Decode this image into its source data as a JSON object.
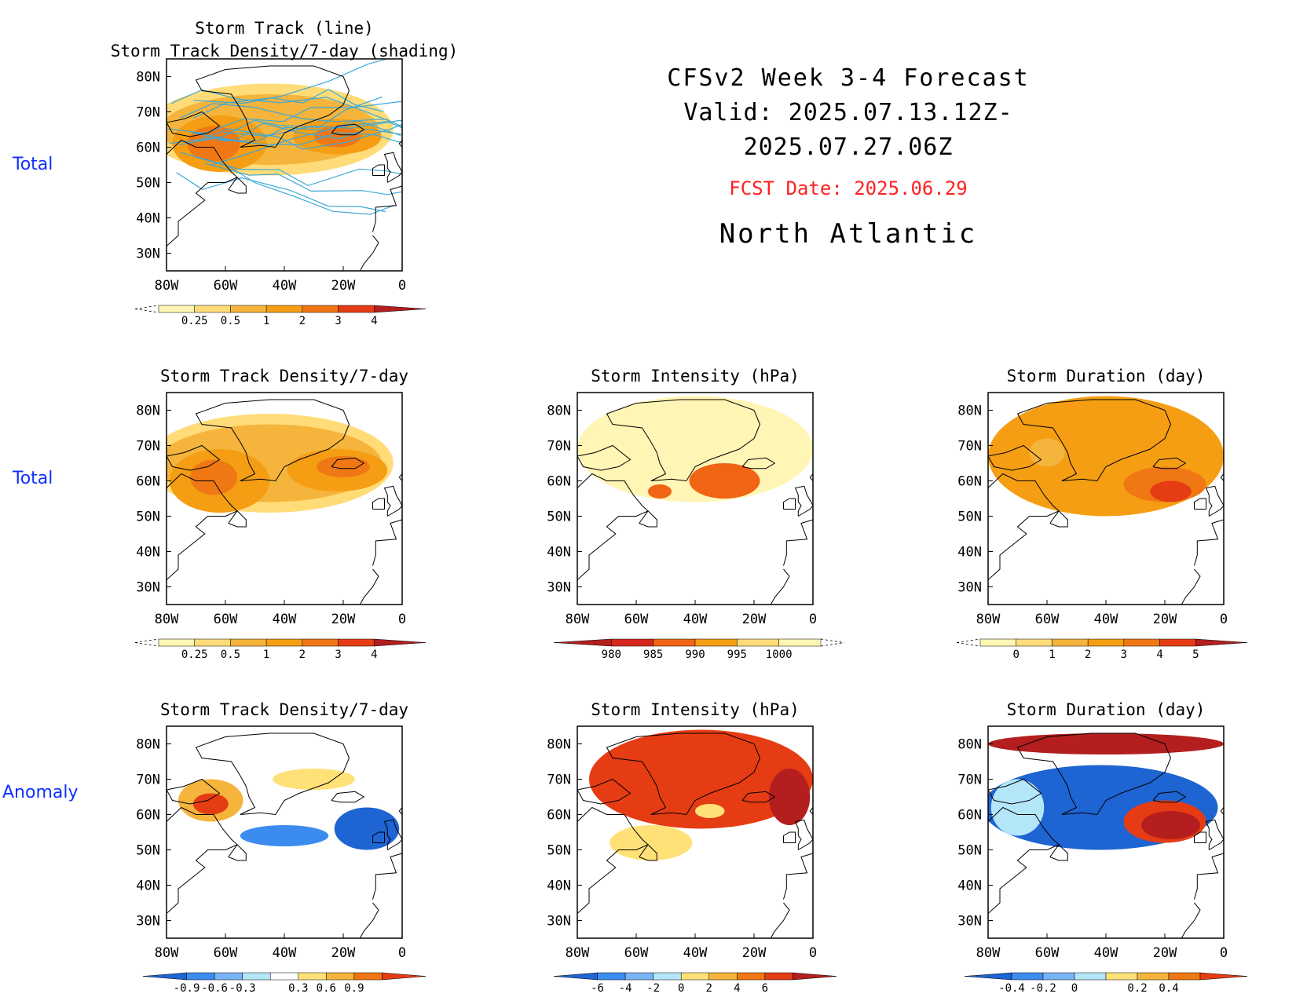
{
  "header": {
    "line1": "CFSv2 Week 3-4 Forecast",
    "line2": "Valid: 2025.07.13.12Z-2025.07.27.06Z",
    "fcst_date": "FCST Date: 2025.06.29",
    "region": "North Atlantic",
    "fcst_color": "#ff2020"
  },
  "row_labels": [
    "Total",
    "Total",
    "Anomaly"
  ],
  "row_label_color": "#1030ff",
  "axes": {
    "lat_ticks": [
      "80N",
      "70N",
      "60N",
      "50N",
      "40N",
      "30N"
    ],
    "lon_ticks": [
      "80W",
      "60W",
      "40W",
      "20W",
      "0"
    ],
    "lat_range": [
      25,
      85
    ],
    "lon_range": [
      -80,
      0
    ]
  },
  "chart_data": [
    {
      "id": "p00",
      "type": "heatmap",
      "title_lines": [
        "Storm Track (line)",
        "Storm Track Density/7-day (shading)"
      ],
      "regions": [
        {
          "lon": -45,
          "lat": 65,
          "rx": 42,
          "ry": 13,
          "level": 1
        },
        {
          "lon": -45,
          "lat": 65,
          "rx": 37,
          "ry": 10,
          "level": 2
        },
        {
          "lon": -62,
          "lat": 61,
          "rx": 16,
          "ry": 8,
          "level": 3
        },
        {
          "lon": -22,
          "lat": 63,
          "rx": 15,
          "ry": 5,
          "level": 3
        },
        {
          "lon": -64,
          "lat": 61,
          "rx": 9,
          "ry": 5,
          "level": 4
        },
        {
          "lon": -22,
          "lat": 63,
          "rx": 8,
          "ry": 3,
          "level": 4
        }
      ],
      "tracks": true,
      "colorbar": {
        "labels": [
          "0.25",
          "0.5",
          "1",
          "2",
          "3",
          "4"
        ],
        "colors": [
          "#fff5b4",
          "#ffdc78",
          "#f5b43c",
          "#f59e14",
          "#f07814",
          "#e63c14",
          "#b41e1e"
        ],
        "left_dashed": true,
        "right_arrow": true
      }
    },
    {
      "id": "p10",
      "type": "heatmap",
      "title_lines": [
        "Storm Track Density/7-day"
      ],
      "regions": [
        {
          "lon": -45,
          "lat": 65,
          "rx": 42,
          "ry": 14,
          "level": 1
        },
        {
          "lon": -45,
          "lat": 65,
          "rx": 38,
          "ry": 11,
          "level": 2
        },
        {
          "lon": -62,
          "lat": 60,
          "rx": 17,
          "ry": 9,
          "level": 3
        },
        {
          "lon": -22,
          "lat": 63,
          "rx": 17,
          "ry": 6,
          "level": 3
        },
        {
          "lon": -64,
          "lat": 61,
          "rx": 8,
          "ry": 5,
          "level": 4
        },
        {
          "lon": -20,
          "lat": 64,
          "rx": 9,
          "ry": 3,
          "level": 4
        }
      ],
      "tracks": false,
      "colorbar": {
        "labels": [
          "0.25",
          "0.5",
          "1",
          "2",
          "3",
          "4"
        ],
        "colors": [
          "#fff5b4",
          "#ffdc78",
          "#f5b43c",
          "#f59e14",
          "#f07814",
          "#e63c14",
          "#b41e1e"
        ],
        "left_dashed": true,
        "right_arrow": true
      }
    },
    {
      "id": "p11",
      "type": "heatmap",
      "title_lines": [
        "Storm Intensity (hPa)"
      ],
      "regions": [
        {
          "lon": -40,
          "lat": 69,
          "rx": 40,
          "ry": 15,
          "level": 0
        },
        {
          "lon": -30,
          "lat": 60,
          "rx": 12,
          "ry": 5,
          "level": 3
        },
        {
          "lon": -52,
          "lat": 57,
          "rx": 4,
          "ry": 2,
          "level": 3
        }
      ],
      "tracks": false,
      "colorbar": {
        "labels": [
          "980",
          "985",
          "990",
          "995",
          "1000"
        ],
        "colors": [
          "#b41e1e",
          "#d7281e",
          "#f06414",
          "#f59e14",
          "#ffdc78",
          "#fff5b4"
        ],
        "left_arrow": true,
        "right_dashed": true
      }
    },
    {
      "id": "p12",
      "type": "heatmap",
      "title_lines": [
        "Storm Duration (day)"
      ],
      "regions": [
        {
          "lon": -40,
          "lat": 67,
          "rx": 40,
          "ry": 17,
          "level": 3
        },
        {
          "lon": -20,
          "lat": 59,
          "rx": 14,
          "ry": 5,
          "level": 4
        },
        {
          "lon": -18,
          "lat": 57,
          "rx": 7,
          "ry": 3,
          "level": 5
        },
        {
          "lon": -60,
          "lat": 68,
          "rx": 6,
          "ry": 4,
          "level": 2
        }
      ],
      "tracks": false,
      "colorbar": {
        "labels": [
          "0",
          "1",
          "2",
          "3",
          "4",
          "5"
        ],
        "colors": [
          "#fff5b4",
          "#ffdc78",
          "#f5b43c",
          "#f59e14",
          "#f07814",
          "#e63c14",
          "#b41e1e"
        ],
        "left_dashed": true,
        "right_arrow": true
      }
    },
    {
      "id": "p20",
      "type": "heatmap",
      "title_lines": [
        "Storm Track Density/7-day"
      ],
      "regions": [
        {
          "lon": -65,
          "lat": 64,
          "rx": 11,
          "ry": 6,
          "level": 4
        },
        {
          "lon": -65,
          "lat": 63,
          "rx": 6,
          "ry": 3,
          "level": 5
        },
        {
          "lon": -40,
          "lat": 54,
          "rx": 15,
          "ry": 3,
          "level": 1
        },
        {
          "lon": -12,
          "lat": 56,
          "rx": 11,
          "ry": 6,
          "level": 0
        },
        {
          "lon": -12,
          "lat": 55,
          "rx": 5,
          "ry": 3,
          "level": 0
        },
        {
          "lon": -30,
          "lat": 70,
          "rx": 14,
          "ry": 3,
          "level": 3
        }
      ],
      "tracks": false,
      "colorbar": {
        "labels": [
          "-0.9",
          "-0.6",
          "-0.3",
          "0.3",
          "0.6",
          "0.9"
        ],
        "colors": [
          "#1e64d2",
          "#3c8cf0",
          "#78b4f5",
          "#b4e6fa",
          "#ffffff",
          "#ffe178",
          "#f5b43c",
          "#f07814",
          "#e63c14"
        ],
        "left_arrow": true,
        "right_arrow": true
      }
    },
    {
      "id": "p21",
      "type": "heatmap",
      "title_lines": [
        "Storm Intensity (hPa)"
      ],
      "regions": [
        {
          "lon": -38,
          "lat": 70,
          "rx": 38,
          "ry": 14,
          "level": 5
        },
        {
          "lon": -8,
          "lat": 65,
          "rx": 7,
          "ry": 8,
          "level": 6
        },
        {
          "lon": -55,
          "lat": 52,
          "rx": 14,
          "ry": 5,
          "level": 3
        },
        {
          "lon": -35,
          "lat": 61,
          "rx": 5,
          "ry": 2,
          "level": 3
        }
      ],
      "tracks": false,
      "colorbar": {
        "labels": [
          "-6",
          "-4",
          "-2",
          "0",
          "2",
          "4",
          "6"
        ],
        "colors": [
          "#1e64d2",
          "#3c8cf0",
          "#78b4f5",
          "#b4e6fa",
          "#ffe178",
          "#f5b43c",
          "#f07814",
          "#e63c14",
          "#b41e1e"
        ],
        "left_arrow": true,
        "right_arrow": true
      }
    },
    {
      "id": "p22",
      "type": "heatmap",
      "title_lines": [
        "Storm Duration (day)"
      ],
      "regions": [
        {
          "lon": -42,
          "lat": 62,
          "rx": 40,
          "ry": 12,
          "level": 0
        },
        {
          "lon": -40,
          "lat": 80,
          "rx": 40,
          "ry": 3,
          "level": 6
        },
        {
          "lon": -20,
          "lat": 58,
          "rx": 14,
          "ry": 6,
          "level": 5
        },
        {
          "lon": -18,
          "lat": 57,
          "rx": 10,
          "ry": 4,
          "level": 6
        },
        {
          "lon": -70,
          "lat": 62,
          "rx": 9,
          "ry": 8,
          "level": 2
        }
      ],
      "tracks": false,
      "colorbar": {
        "labels": [
          "-0.4",
          "-0.2",
          "0",
          "0.2",
          "0.4"
        ],
        "colors": [
          "#1e64d2",
          "#3c8cf0",
          "#78b4f5",
          "#b4e6fa",
          "#ffe178",
          "#f5b43c",
          "#f07814",
          "#e63c14"
        ],
        "left_arrow": true,
        "right_arrow": true
      }
    }
  ]
}
